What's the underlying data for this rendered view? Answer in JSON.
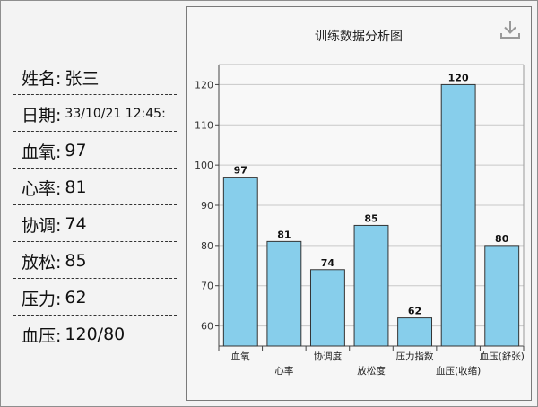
{
  "info": {
    "name_label": "姓名:",
    "name_value": "张三",
    "date_label": "日期:",
    "date_value": "33/10/21 12:45:",
    "spo2_label": "血氧:",
    "spo2_value": "97",
    "hr_label": "心率:",
    "hr_value": "81",
    "coord_label": "协调:",
    "coord_value": "74",
    "relax_label": "放松:",
    "relax_value": "85",
    "pressure_label": "压力:",
    "pressure_value": "62",
    "bp_label": "血压:",
    "bp_value": "120/80"
  },
  "chart_data": {
    "type": "bar",
    "title": "训练数据分析图",
    "categories": [
      "血氧",
      "心率",
      "协调度",
      "放松度",
      "压力指数",
      "血压(收缩)",
      "血压(舒张)"
    ],
    "values": [
      97,
      81,
      74,
      85,
      62,
      120,
      80
    ],
    "ylim": [
      55,
      125
    ],
    "yticks": [
      60,
      70,
      80,
      90,
      100,
      110,
      120
    ],
    "grid": true,
    "bar_color": "#87ceeb",
    "bar_edge_color": "#333333",
    "download_icon": "download-icon"
  }
}
